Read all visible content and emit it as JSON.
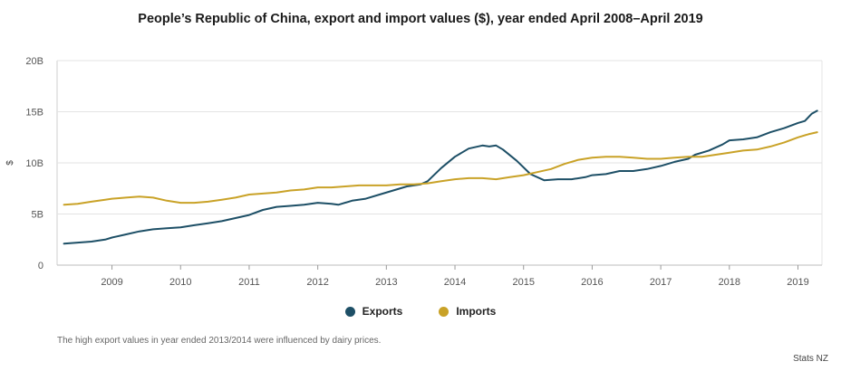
{
  "chart_data": {
    "type": "line",
    "title": "People’s Republic of China, export and import values ($), year ended April 2008–April 2019",
    "ylabel": "$",
    "xlabel": "",
    "ylim": [
      0,
      20
    ],
    "xlim": [
      2008.2,
      2019.35
    ],
    "y_ticks": [
      0,
      5,
      10,
      15,
      20
    ],
    "y_tick_labels": [
      "0",
      "5B",
      "10B",
      "15B",
      "20B"
    ],
    "x_ticks": [
      2009,
      2010,
      2011,
      2012,
      2013,
      2014,
      2015,
      2016,
      2017,
      2018,
      2019
    ],
    "x_tick_labels": [
      "2009",
      "2010",
      "2011",
      "2012",
      "2013",
      "2014",
      "2015",
      "2016",
      "2017",
      "2018",
      "2019"
    ],
    "unit": "billion NZ$",
    "grid": "horizontal",
    "legend_position": "bottom",
    "series": [
      {
        "name": "Exports",
        "color": "#1d4f66",
        "points": [
          [
            2008.3,
            2.1
          ],
          [
            2008.5,
            2.2
          ],
          [
            2008.7,
            2.3
          ],
          [
            2008.9,
            2.5
          ],
          [
            2009.0,
            2.7
          ],
          [
            2009.2,
            3.0
          ],
          [
            2009.4,
            3.3
          ],
          [
            2009.6,
            3.5
          ],
          [
            2009.8,
            3.6
          ],
          [
            2010.0,
            3.7
          ],
          [
            2010.2,
            3.9
          ],
          [
            2010.4,
            4.1
          ],
          [
            2010.6,
            4.3
          ],
          [
            2010.8,
            4.6
          ],
          [
            2011.0,
            4.9
          ],
          [
            2011.2,
            5.4
          ],
          [
            2011.4,
            5.7
          ],
          [
            2011.6,
            5.8
          ],
          [
            2011.8,
            5.9
          ],
          [
            2012.0,
            6.1
          ],
          [
            2012.2,
            6.0
          ],
          [
            2012.3,
            5.9
          ],
          [
            2012.5,
            6.3
          ],
          [
            2012.7,
            6.5
          ],
          [
            2012.9,
            6.9
          ],
          [
            2013.1,
            7.3
          ],
          [
            2013.3,
            7.7
          ],
          [
            2013.5,
            7.9
          ],
          [
            2013.6,
            8.2
          ],
          [
            2013.8,
            9.5
          ],
          [
            2014.0,
            10.6
          ],
          [
            2014.2,
            11.4
          ],
          [
            2014.4,
            11.7
          ],
          [
            2014.5,
            11.6
          ],
          [
            2014.6,
            11.7
          ],
          [
            2014.7,
            11.3
          ],
          [
            2014.9,
            10.2
          ],
          [
            2015.1,
            8.9
          ],
          [
            2015.3,
            8.3
          ],
          [
            2015.5,
            8.4
          ],
          [
            2015.7,
            8.4
          ],
          [
            2015.9,
            8.6
          ],
          [
            2016.0,
            8.8
          ],
          [
            2016.2,
            8.9
          ],
          [
            2016.4,
            9.2
          ],
          [
            2016.6,
            9.2
          ],
          [
            2016.8,
            9.4
          ],
          [
            2017.0,
            9.7
          ],
          [
            2017.2,
            10.1
          ],
          [
            2017.4,
            10.4
          ],
          [
            2017.5,
            10.8
          ],
          [
            2017.7,
            11.2
          ],
          [
            2017.9,
            11.8
          ],
          [
            2018.0,
            12.2
          ],
          [
            2018.2,
            12.3
          ],
          [
            2018.4,
            12.5
          ],
          [
            2018.6,
            13.0
          ],
          [
            2018.8,
            13.4
          ],
          [
            2019.0,
            13.9
          ],
          [
            2019.1,
            14.1
          ],
          [
            2019.2,
            14.8
          ],
          [
            2019.28,
            15.1
          ]
        ]
      },
      {
        "name": "Imports",
        "color": "#c9a227",
        "points": [
          [
            2008.3,
            5.9
          ],
          [
            2008.5,
            6.0
          ],
          [
            2008.7,
            6.2
          ],
          [
            2008.9,
            6.4
          ],
          [
            2009.0,
            6.5
          ],
          [
            2009.2,
            6.6
          ],
          [
            2009.4,
            6.7
          ],
          [
            2009.6,
            6.6
          ],
          [
            2009.8,
            6.3
          ],
          [
            2010.0,
            6.1
          ],
          [
            2010.2,
            6.1
          ],
          [
            2010.4,
            6.2
          ],
          [
            2010.6,
            6.4
          ],
          [
            2010.8,
            6.6
          ],
          [
            2011.0,
            6.9
          ],
          [
            2011.2,
            7.0
          ],
          [
            2011.4,
            7.1
          ],
          [
            2011.6,
            7.3
          ],
          [
            2011.8,
            7.4
          ],
          [
            2012.0,
            7.6
          ],
          [
            2012.2,
            7.6
          ],
          [
            2012.4,
            7.7
          ],
          [
            2012.6,
            7.8
          ],
          [
            2012.8,
            7.8
          ],
          [
            2013.0,
            7.8
          ],
          [
            2013.2,
            7.9
          ],
          [
            2013.4,
            7.9
          ],
          [
            2013.6,
            8.0
          ],
          [
            2013.8,
            8.2
          ],
          [
            2014.0,
            8.4
          ],
          [
            2014.2,
            8.5
          ],
          [
            2014.4,
            8.5
          ],
          [
            2014.6,
            8.4
          ],
          [
            2014.8,
            8.6
          ],
          [
            2015.0,
            8.8
          ],
          [
            2015.2,
            9.1
          ],
          [
            2015.4,
            9.4
          ],
          [
            2015.6,
            9.9
          ],
          [
            2015.8,
            10.3
          ],
          [
            2016.0,
            10.5
          ],
          [
            2016.2,
            10.6
          ],
          [
            2016.4,
            10.6
          ],
          [
            2016.6,
            10.5
          ],
          [
            2016.8,
            10.4
          ],
          [
            2017.0,
            10.4
          ],
          [
            2017.2,
            10.5
          ],
          [
            2017.4,
            10.6
          ],
          [
            2017.6,
            10.6
          ],
          [
            2017.8,
            10.8
          ],
          [
            2018.0,
            11.0
          ],
          [
            2018.2,
            11.2
          ],
          [
            2018.4,
            11.3
          ],
          [
            2018.6,
            11.6
          ],
          [
            2018.8,
            12.0
          ],
          [
            2019.0,
            12.5
          ],
          [
            2019.15,
            12.8
          ],
          [
            2019.28,
            13.0
          ]
        ]
      }
    ],
    "annotations": [
      "The high export values in year ended 2013/2014 were influenced by dairy prices."
    ],
    "source": "Stats NZ"
  }
}
